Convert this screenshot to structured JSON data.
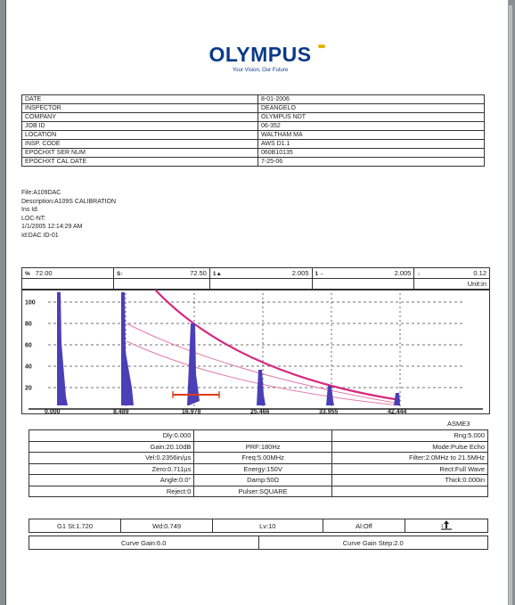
{
  "logo": {
    "brand": "OLYMPUS",
    "tagline": "Your Vision, Our Future"
  },
  "info_rows": [
    {
      "label": "DATE",
      "value": "8-01-2006"
    },
    {
      "label": "INSPECTOR",
      "value": "DEANGELO"
    },
    {
      "label": "COMPANY",
      "value": "OLYMPUS NDT"
    },
    {
      "label": "JOB ID",
      "value": "06-352"
    },
    {
      "label": "LOCATION",
      "value": "WALTHAM MA"
    },
    {
      "label": "INSP. CODE",
      "value": "AWS D1.1"
    },
    {
      "label": "EPOCHXT SER NUM",
      "value": "060B10135"
    },
    {
      "label": "EPOCHXT CAL DATE",
      "value": "7-25-06"
    }
  ],
  "file_info": {
    "file": "File:A109DAC",
    "description": "Description:A109S CALIBRATION",
    "ins_id": "Ins Id:",
    "loc": "LOC-NT:",
    "datetime": "1/1/2005 12:14:29 AM",
    "id": "Id:DAC ID-01"
  },
  "readouts": [
    {
      "icon": "%",
      "value": "72.00"
    },
    {
      "icon": "S↑",
      "value": "72.50"
    },
    {
      "icon": "1▲",
      "value": "2.005"
    },
    {
      "icon": "1→",
      "value": "2.005"
    },
    {
      "icon": "↓",
      "value": "0.12"
    }
  ],
  "unit_label": "Unit:in",
  "scope": {
    "y_ticks": [
      "100",
      "80",
      "60",
      "40",
      "20"
    ],
    "x_ticks": [
      "0.000",
      "8.489",
      "16.978",
      "25.466",
      "33.955",
      "42.444"
    ]
  },
  "asme_label": "ASME3",
  "params": [
    {
      "left": "Dly:0.000",
      "mid": "",
      "right": "Rng:5.000"
    },
    {
      "left": "Gain:20.10dB",
      "mid": "PRF:180Hz",
      "right": "Mode:Pulse Echo"
    },
    {
      "left": "Vel:0.2356in/µs",
      "mid": "Freq:5.00MHz",
      "right": "Filter:2.0MHz to 21.5MHz"
    },
    {
      "left": "Zero:0.711µs",
      "mid": "Energy:150V",
      "right": "Rect:Full Wave"
    },
    {
      "left": "Angle:0.0°",
      "mid": "Damp:50Ω",
      "right": "Thick:0.000in"
    },
    {
      "left": "Reject:0",
      "mid": "Pulser:SQUARE",
      "right": ""
    }
  ],
  "gates": {
    "g1": "G1 St:1.720",
    "wd": "Wd:0.749",
    "lv": "Lv:10",
    "al": "Al:Off"
  },
  "curve": {
    "gain": "Curve Gain:6.0",
    "step": "Curve Gain Step:2.0"
  }
}
